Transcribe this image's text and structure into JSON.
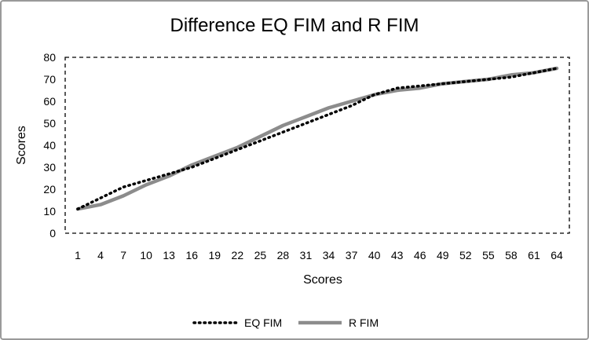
{
  "chart_data": {
    "type": "line",
    "title": "Difference EQ FIM and R FIM",
    "xlabel": "Scores",
    "ylabel": "Scores",
    "x": [
      1,
      4,
      7,
      10,
      13,
      16,
      19,
      22,
      25,
      28,
      31,
      34,
      37,
      40,
      43,
      46,
      49,
      52,
      55,
      58,
      61,
      64
    ],
    "ylim": [
      0,
      80
    ],
    "yticks": [
      0,
      10,
      20,
      30,
      40,
      50,
      60,
      70,
      80
    ],
    "grid": false,
    "legend": "bottom",
    "series": [
      {
        "name": "EQ FIM",
        "style": "dotted",
        "color": "#000000",
        "values": [
          11,
          16,
          21,
          24,
          27,
          30,
          34,
          38,
          42,
          46,
          50,
          54,
          58,
          63,
          66,
          67,
          68,
          69,
          70,
          71,
          73,
          75
        ]
      },
      {
        "name": "R FIM",
        "style": "solid",
        "color": "#8c8c8c",
        "values": [
          11,
          13,
          17,
          22,
          26,
          31,
          35,
          39,
          44,
          49,
          53,
          57,
          60,
          63,
          65,
          66,
          68,
          69,
          70,
          72,
          73,
          75
        ]
      }
    ]
  }
}
